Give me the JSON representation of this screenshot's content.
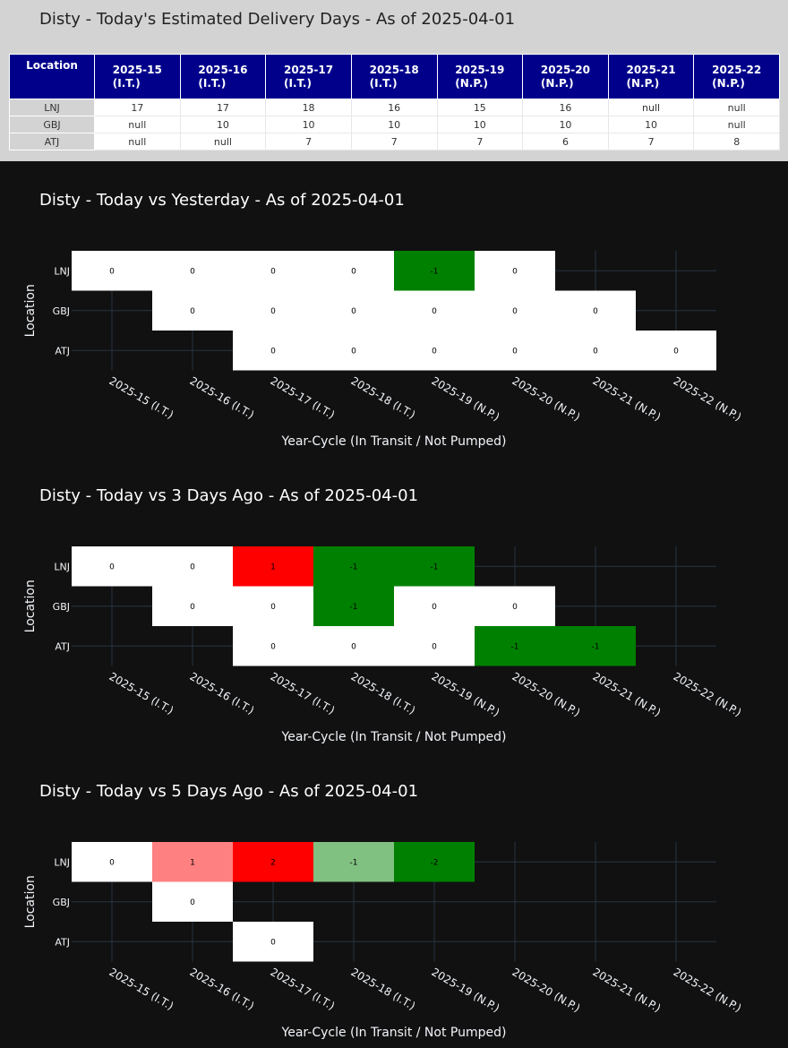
{
  "table": {
    "title": "Disty - Today's Estimated Delivery Days - As of 2025-04-01",
    "location_header": "Location",
    "columns": [
      {
        "cycle": "2025-15",
        "status": "(I.T.)"
      },
      {
        "cycle": "2025-16",
        "status": "(I.T.)"
      },
      {
        "cycle": "2025-17",
        "status": "(I.T.)"
      },
      {
        "cycle": "2025-18",
        "status": "(I.T.)"
      },
      {
        "cycle": "2025-19",
        "status": "(N.P.)"
      },
      {
        "cycle": "2025-20",
        "status": "(N.P.)"
      },
      {
        "cycle": "2025-21",
        "status": "(N.P.)"
      },
      {
        "cycle": "2025-22",
        "status": "(N.P.)"
      }
    ],
    "rows": [
      {
        "location": "LNJ",
        "values": [
          "17",
          "17",
          "18",
          "16",
          "15",
          "16",
          "null",
          "null"
        ]
      },
      {
        "location": "GBJ",
        "values": [
          "null",
          "10",
          "10",
          "10",
          "10",
          "10",
          "10",
          "null"
        ]
      },
      {
        "location": "ATJ",
        "values": [
          "null",
          "null",
          "7",
          "7",
          "7",
          "6",
          "7",
          "8"
        ]
      }
    ],
    "colors": {
      "header_bg": "#00008b",
      "location_bg": "#d3d3d3"
    }
  },
  "chart_data": [
    {
      "type": "heatmap",
      "title": "Disty - Today vs Yesterday - As of 2025-04-01",
      "xlabel": "Year-Cycle (In Transit / Not Pumped)",
      "ylabel": "Location",
      "x": [
        "2025-15 (I.T.)",
        "2025-16 (I.T.)",
        "2025-17 (I.T.)",
        "2025-18 (I.T.)",
        "2025-19 (N.P.)",
        "2025-20 (N.P.)",
        "2025-21 (N.P.)",
        "2025-22 (N.P.)"
      ],
      "y": [
        "LNJ",
        "GBJ",
        "ATJ"
      ],
      "z": [
        [
          0,
          0,
          0,
          0,
          -1,
          0,
          null,
          null
        ],
        [
          null,
          0,
          0,
          0,
          0,
          0,
          0,
          null
        ],
        [
          null,
          null,
          0,
          0,
          0,
          0,
          0,
          0
        ]
      ],
      "colorscale": {
        "-2": "#008000",
        "-1": "#008000",
        "0": "#ffffff",
        "1": "#ff0000",
        "2": "#ff0000"
      },
      "grid": true
    },
    {
      "type": "heatmap",
      "title": "Disty - Today vs 3 Days Ago - As of 2025-04-01",
      "xlabel": "Year-Cycle (In Transit / Not Pumped)",
      "ylabel": "Location",
      "x": [
        "2025-15 (I.T.)",
        "2025-16 (I.T.)",
        "2025-17 (I.T.)",
        "2025-18 (I.T.)",
        "2025-19 (N.P.)",
        "2025-20 (N.P.)",
        "2025-21 (N.P.)",
        "2025-22 (N.P.)"
      ],
      "y": [
        "LNJ",
        "GBJ",
        "ATJ"
      ],
      "z": [
        [
          0,
          0,
          1,
          -1,
          -1,
          null,
          null,
          null
        ],
        [
          null,
          0,
          0,
          -1,
          0,
          0,
          null,
          null
        ],
        [
          null,
          null,
          0,
          0,
          0,
          -1,
          -1,
          null
        ]
      ],
      "colorscale": {
        "-2": "#008000",
        "-1": "#008000",
        "0": "#ffffff",
        "1": "#ff0000",
        "2": "#ff0000"
      },
      "grid": true
    },
    {
      "type": "heatmap",
      "title": "Disty - Today vs 5 Days Ago - As of 2025-04-01",
      "xlabel": "Year-Cycle (In Transit / Not Pumped)",
      "ylabel": "Location",
      "x": [
        "2025-15 (I.T.)",
        "2025-16 (I.T.)",
        "2025-17 (I.T.)",
        "2025-18 (I.T.)",
        "2025-19 (N.P.)",
        "2025-20 (N.P.)",
        "2025-21 (N.P.)",
        "2025-22 (N.P.)"
      ],
      "y": [
        "LNJ",
        "GBJ",
        "ATJ"
      ],
      "z": [
        [
          0,
          1,
          2,
          -1,
          -2,
          null,
          null,
          null
        ],
        [
          null,
          0,
          null,
          null,
          null,
          null,
          null,
          null
        ],
        [
          null,
          null,
          0,
          null,
          null,
          null,
          null,
          null
        ]
      ],
      "colorscale": {
        "-2": "#008000",
        "-1": "#80c080",
        "0": "#ffffff",
        "1": "#ff8080",
        "2": "#ff0000"
      },
      "grid": true
    }
  ]
}
